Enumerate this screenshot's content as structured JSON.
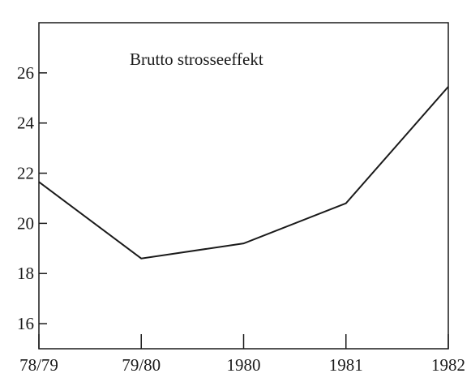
{
  "chart_data": {
    "type": "line",
    "annotation": "Brutto strosseeffekt",
    "categories": [
      "78/79",
      "79/80",
      "1980",
      "1981",
      "1982"
    ],
    "values": [
      21.65,
      18.6,
      19.2,
      20.8,
      25.45
    ],
    "color": "#1a1a1a",
    "ylim": [
      15,
      28
    ],
    "yticks": [
      16,
      18,
      20,
      22,
      24,
      26
    ],
    "grid": false
  }
}
